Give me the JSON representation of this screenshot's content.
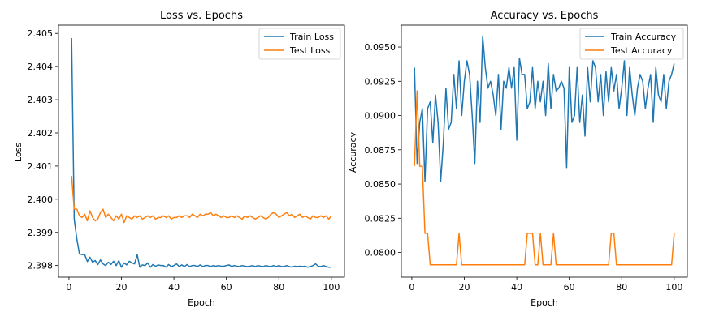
{
  "colors": {
    "series_blue": "#1f77b4",
    "series_orange": "#ff7f0e"
  },
  "chart_data": [
    {
      "type": "line",
      "title": "Loss vs. Epochs",
      "xlabel": "Epoch",
      "ylabel": "Loss",
      "xlim": [
        -4,
        105
      ],
      "ylim": [
        2.39765,
        2.40525
      ],
      "xticks": [
        0,
        20,
        40,
        60,
        80,
        100
      ],
      "yticks": [
        2.398,
        2.399,
        2.4,
        2.401,
        2.402,
        2.403,
        2.404,
        2.405
      ],
      "legend_position": "top-right",
      "grid": false,
      "series": [
        {
          "name": "Train Loss",
          "color": "#1f77b4",
          "x_start": 1,
          "values": [
            2.40486,
            2.3994,
            2.3988,
            2.39835,
            2.39833,
            2.39833,
            2.39812,
            2.39825,
            2.3981,
            2.39815,
            2.39803,
            2.39817,
            2.39805,
            2.398,
            2.3981,
            2.39803,
            2.39813,
            2.398,
            2.39815,
            2.39795,
            2.39808,
            2.39802,
            2.39813,
            2.39808,
            2.39805,
            2.39833,
            2.39795,
            2.39802,
            2.398,
            2.39808,
            2.39795,
            2.39803,
            2.39798,
            2.39802,
            2.398,
            2.398,
            2.39795,
            2.39803,
            2.39797,
            2.398,
            2.39805,
            2.39797,
            2.39802,
            2.39797,
            2.39803,
            2.39797,
            2.398,
            2.398,
            2.39797,
            2.39802,
            2.39797,
            2.398,
            2.398,
            2.39797,
            2.398,
            2.39798,
            2.398,
            2.39798,
            2.39798,
            2.398,
            2.39802,
            2.39797,
            2.398,
            2.39798,
            2.39797,
            2.398,
            2.39798,
            2.39797,
            2.39798,
            2.398,
            2.39797,
            2.398,
            2.39798,
            2.39797,
            2.398,
            2.39798,
            2.39797,
            2.398,
            2.39797,
            2.398,
            2.39797,
            2.39797,
            2.398,
            2.39797,
            2.39795,
            2.39798,
            2.39797,
            2.39798,
            2.39797,
            2.39798,
            2.39795,
            2.39797,
            2.398,
            2.39805,
            2.39798,
            2.39797,
            2.398,
            2.39797,
            2.39795,
            2.39795
          ]
        },
        {
          "name": "Test Loss",
          "color": "#ff7f0e",
          "x_start": 1,
          "values": [
            2.4007,
            2.3997,
            2.3997,
            2.3995,
            2.39945,
            2.39955,
            2.39935,
            2.39965,
            2.39945,
            2.39935,
            2.3994,
            2.3996,
            2.3997,
            2.39945,
            2.39955,
            2.39945,
            2.39935,
            2.3995,
            2.3994,
            2.39955,
            2.3993,
            2.3995,
            2.39945,
            2.3994,
            2.3995,
            2.39945,
            2.3995,
            2.3994,
            2.39945,
            2.3995,
            2.39945,
            2.3995,
            2.3994,
            2.39945,
            2.39945,
            2.3995,
            2.39945,
            2.3995,
            2.3994,
            2.39945,
            2.39945,
            2.3995,
            2.39945,
            2.3995,
            2.3995,
            2.39945,
            2.39955,
            2.3995,
            2.39945,
            2.39955,
            2.3995,
            2.39955,
            2.39955,
            2.3996,
            2.3995,
            2.39955,
            2.3995,
            2.39945,
            2.3995,
            2.39945,
            2.39945,
            2.3995,
            2.39945,
            2.3995,
            2.39945,
            2.3994,
            2.3995,
            2.39945,
            2.3995,
            2.39945,
            2.3994,
            2.39945,
            2.3995,
            2.39945,
            2.3994,
            2.39945,
            2.39955,
            2.3996,
            2.39955,
            2.39945,
            2.3995,
            2.39955,
            2.3996,
            2.3995,
            2.39955,
            2.39945,
            2.3995,
            2.39955,
            2.39945,
            2.3995,
            2.39945,
            2.3994,
            2.3995,
            2.39945,
            2.39945,
            2.3995,
            2.39945,
            2.3995,
            2.3994,
            2.3995
          ]
        }
      ]
    },
    {
      "type": "line",
      "title": "Accuracy vs. Epochs",
      "xlabel": "Epoch",
      "ylabel": "Accuracy",
      "xlim": [
        -4,
        105
      ],
      "ylim": [
        0.0782,
        0.0966
      ],
      "xticks": [
        0,
        20,
        40,
        60,
        80,
        100
      ],
      "yticks": [
        0.08,
        0.0825,
        0.085,
        0.0875,
        0.09,
        0.0925,
        0.095
      ],
      "ytick_labels": [
        "0.0800",
        "0.0825",
        "0.0850",
        "0.0875",
        "0.0900",
        "0.0925",
        "0.0950"
      ],
      "legend_position": "top-right",
      "grid": false,
      "series": [
        {
          "name": "Train Accuracy",
          "color": "#1f77b4",
          "x_start": 1,
          "values": [
            0.0935,
            0.0865,
            0.0895,
            0.0905,
            0.0852,
            0.0905,
            0.091,
            0.088,
            0.0915,
            0.0895,
            0.0852,
            0.088,
            0.092,
            0.089,
            0.0895,
            0.093,
            0.0905,
            0.094,
            0.09,
            0.0925,
            0.094,
            0.093,
            0.09,
            0.0865,
            0.0925,
            0.0895,
            0.0958,
            0.0935,
            0.092,
            0.0925,
            0.0915,
            0.09,
            0.093,
            0.089,
            0.0925,
            0.092,
            0.0935,
            0.092,
            0.0935,
            0.0882,
            0.0942,
            0.093,
            0.093,
            0.0905,
            0.091,
            0.0935,
            0.0905,
            0.0925,
            0.091,
            0.0925,
            0.09,
            0.0938,
            0.0905,
            0.093,
            0.0918,
            0.092,
            0.0925,
            0.092,
            0.0862,
            0.0935,
            0.0895,
            0.09,
            0.0935,
            0.0895,
            0.0915,
            0.0885,
            0.0935,
            0.091,
            0.094,
            0.0935,
            0.091,
            0.093,
            0.09,
            0.0932,
            0.091,
            0.0935,
            0.0918,
            0.093,
            0.0905,
            0.092,
            0.094,
            0.09,
            0.0935,
            0.0915,
            0.09,
            0.092,
            0.093,
            0.0925,
            0.0905,
            0.092,
            0.093,
            0.0895,
            0.0935,
            0.0915,
            0.091,
            0.093,
            0.0905,
            0.0925,
            0.093,
            0.0938
          ]
        },
        {
          "name": "Test Accuracy",
          "color": "#ff7f0e",
          "x_start": 1,
          "values": [
            0.0863,
            0.0918,
            0.0863,
            0.0863,
            0.0814,
            0.0814,
            0.0791,
            0.0791,
            0.0791,
            0.0791,
            0.0791,
            0.0791,
            0.0791,
            0.0791,
            0.0791,
            0.0791,
            0.0791,
            0.0814,
            0.0791,
            0.0791,
            0.0791,
            0.0791,
            0.0791,
            0.0791,
            0.0791,
            0.0791,
            0.0791,
            0.0791,
            0.0791,
            0.0791,
            0.0791,
            0.0791,
            0.0791,
            0.0791,
            0.0791,
            0.0791,
            0.0791,
            0.0791,
            0.0791,
            0.0791,
            0.0791,
            0.0791,
            0.0791,
            0.0814,
            0.0814,
            0.0814,
            0.0791,
            0.0791,
            0.0814,
            0.0791,
            0.0791,
            0.0791,
            0.0791,
            0.0814,
            0.0791,
            0.0791,
            0.0791,
            0.0791,
            0.0791,
            0.0791,
            0.0791,
            0.0791,
            0.0791,
            0.0791,
            0.0791,
            0.0791,
            0.0791,
            0.0791,
            0.0791,
            0.0791,
            0.0791,
            0.0791,
            0.0791,
            0.0791,
            0.0791,
            0.0814,
            0.0814,
            0.0791,
            0.0791,
            0.0791,
            0.0791,
            0.0791,
            0.0791,
            0.0791,
            0.0791,
            0.0791,
            0.0791,
            0.0791,
            0.0791,
            0.0791,
            0.0791,
            0.0791,
            0.0791,
            0.0791,
            0.0791,
            0.0791,
            0.0791,
            0.0791,
            0.0791,
            0.0814
          ]
        }
      ]
    }
  ]
}
